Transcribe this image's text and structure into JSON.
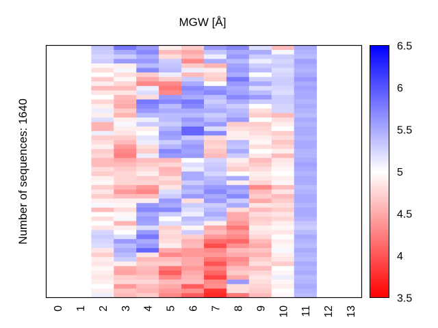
{
  "chart_data": {
    "type": "heatmap",
    "title": "MGW [Å]",
    "xlabel": "",
    "ylabel": "Number of sequences: 1640",
    "n_rows": 1640,
    "x_tick_labels": [
      "0",
      "1",
      "2",
      "3",
      "4",
      "5",
      "6",
      "7",
      "8",
      "9",
      "10",
      "11",
      "12",
      "13"
    ],
    "colorbar": {
      "min": 3.5,
      "max": 6.5,
      "center": 5,
      "ticks": [
        3.5,
        4,
        4.5,
        5,
        5.5,
        6,
        6.5
      ],
      "tick_labels": [
        "3.5",
        "4",
        "4.5",
        "5",
        "5.5",
        "6",
        "6.5"
      ],
      "colormap": "bwr_reversed",
      "low_color": "#ff0000",
      "mid_color": "#ffffff",
      "high_color": "#0000ff"
    },
    "columns_empty": [
      0,
      1,
      12,
      13
    ],
    "columns": {
      "2": [
        5.35,
        5.3,
        5.25,
        5.3,
        4.95,
        4.8,
        5.0,
        4.7,
        4.9,
        4.6,
        4.85,
        5.0,
        4.75,
        4.9,
        5.1,
        4.9,
        5.2,
        4.55,
        4.55,
        5.1,
        4.7,
        4.8,
        4.9,
        4.7,
        4.75,
        4.6,
        4.6,
        4.8,
        4.7,
        4.9,
        4.95,
        4.7,
        4.85,
        4.7,
        4.9,
        5.05,
        4.6,
        5.0,
        4.8,
        5.0,
        4.85,
        5.25,
        5.3,
        5.25,
        5.2,
        4.85,
        4.7,
        4.9,
        4.85,
        4.95,
        4.9,
        4.85,
        4.9,
        5.0,
        4.9,
        5.1
      ],
      "3": [
        5.8,
        5.5,
        5.3,
        5.6,
        4.9,
        5.05,
        4.8,
        4.95,
        4.75,
        4.6,
        4.85,
        4.6,
        4.55,
        4.5,
        4.7,
        4.55,
        4.9,
        5.05,
        4.9,
        4.85,
        4.7,
        4.6,
        4.4,
        4.3,
        4.25,
        4.5,
        4.6,
        4.7,
        4.75,
        4.75,
        4.75,
        4.55,
        4.4,
        4.6,
        4.9,
        4.95,
        4.8,
        4.95,
        5.05,
        4.55,
        4.9,
        5.0,
        5.2,
        5.6,
        5.4,
        5.5,
        5.4,
        5.3,
        4.9,
        4.5,
        4.45,
        4.7,
        4.75,
        4.4,
        4.65,
        4.6
      ],
      "4": [
        5.6,
        5.7,
        5.5,
        5.6,
        5.4,
        5.7,
        4.7,
        4.5,
        4.3,
        5.1,
        5.2,
        4.8,
        5.8,
        5.7,
        5.6,
        5.4,
        5.1,
        5.3,
        4.9,
        5.0,
        5.15,
        5.1,
        4.8,
        4.7,
        5.1,
        4.6,
        4.7,
        4.8,
        4.9,
        4.7,
        4.75,
        4.4,
        4.3,
        4.6,
        4.9,
        5.6,
        5.7,
        5.5,
        5.6,
        5.55,
        5.2,
        5.6,
        5.8,
        5.5,
        5.6,
        5.9,
        4.85,
        4.6,
        4.7,
        4.6,
        4.55,
        4.65,
        4.75,
        4.6,
        4.55,
        4.7
      ],
      "5": [
        4.9,
        4.6,
        4.8,
        5.3,
        5.35,
        5.4,
        5.1,
        4.7,
        4.3,
        4.2,
        4.3,
        5.6,
        5.7,
        5.4,
        5.5,
        5.4,
        5.4,
        5.3,
        5.45,
        5.6,
        5.55,
        5.3,
        5.45,
        5.7,
        5.6,
        4.6,
        4.75,
        4.55,
        4.6,
        4.8,
        4.7,
        4.85,
        5.2,
        5.3,
        5.6,
        5.5,
        5.7,
        5.3,
        5.0,
        5.2,
        4.7,
        4.8,
        4.75,
        4.8,
        4.9,
        4.5,
        4.3,
        4.6,
        4.7,
        4.2,
        4.05,
        4.3,
        4.6,
        4.5,
        4.4,
        4.3
      ],
      "6": [
        4.7,
        4.5,
        4.6,
        4.3,
        4.7,
        5.1,
        4.6,
        5.3,
        5.5,
        5.7,
        5.6,
        5.5,
        5.8,
        5.7,
        5.5,
        5.4,
        5.6,
        5.5,
        5.9,
        5.9,
        5.3,
        5.5,
        5.6,
        5.55,
        5.6,
        5.0,
        5.2,
        5.1,
        5.5,
        5.5,
        5.3,
        5.5,
        5.4,
        5.6,
        4.8,
        5.3,
        5.2,
        5.1,
        5.4,
        5.3,
        4.95,
        5.3,
        4.7,
        4.55,
        4.6,
        4.4,
        4.4,
        4.5,
        4.5,
        4.4,
        4.5,
        4.55,
        4.6,
        4.05,
        4.35,
        4.05
      ],
      "7": [
        5.6,
        5.35,
        5.1,
        5.5,
        4.55,
        4.9,
        4.75,
        4.7,
        5.0,
        5.6,
        5.7,
        5.4,
        5.3,
        5.4,
        5.5,
        5.3,
        5.4,
        5.6,
        5.2,
        5.7,
        4.8,
        4.7,
        4.75,
        4.65,
        4.6,
        5.25,
        5.3,
        5.35,
        5.25,
        5.4,
        5.45,
        5.6,
        5.7,
        5.5,
        5.6,
        5.3,
        5.4,
        5.5,
        5.35,
        4.9,
        4.5,
        4.6,
        4.4,
        4.15,
        3.95,
        4.3,
        4.4,
        4.2,
        4.0,
        4.25,
        4.1,
        3.9,
        4.3,
        4.35,
        3.8,
        3.75
      ],
      "8": [
        5.7,
        5.5,
        5.6,
        5.4,
        5.55,
        5.6,
        5.5,
        5.8,
        5.6,
        5.5,
        5.55,
        5.7,
        5.5,
        5.3,
        5.4,
        5.45,
        5.6,
        4.7,
        4.8,
        4.9,
        4.9,
        5.4,
        5.35,
        5.5,
        5.3,
        4.9,
        4.8,
        4.7,
        5.0,
        5.5,
        4.9,
        5.6,
        5.5,
        5.7,
        5.3,
        5.5,
        4.8,
        4.5,
        4.5,
        4.4,
        4.2,
        4.4,
        4.3,
        4.1,
        4.35,
        4.6,
        4.5,
        4.3,
        4.4,
        4.6,
        4.7,
        4.5,
        5.6,
        4.8,
        4.8,
        4.2
      ],
      "9": [
        5.2,
        5.5,
        5.3,
        5.1,
        5.3,
        5.4,
        5.0,
        5.3,
        5.5,
        5.2,
        5.4,
        5.6,
        5.3,
        5.0,
        4.8,
        4.7,
        5.0,
        4.7,
        4.75,
        4.8,
        4.9,
        4.95,
        4.8,
        5.0,
        4.85,
        4.6,
        4.7,
        4.8,
        4.9,
        4.85,
        4.75,
        4.3,
        4.6,
        4.7,
        4.5,
        4.85,
        4.6,
        4.8,
        4.7,
        4.75,
        4.9,
        4.85,
        4.75,
        4.6,
        4.5,
        4.65,
        4.55,
        4.7,
        4.8,
        4.6,
        4.75,
        4.85,
        4.8,
        4.75,
        4.7,
        4.6
      ],
      "10": [
        4.6,
        5.05,
        5.3,
        5.25,
        5.3,
        5.2,
        5.25,
        5.3,
        5.3,
        5.25,
        5.2,
        5.3,
        5.3,
        5.25,
        5.25,
        4.6,
        4.8,
        4.9,
        5.0,
        4.7,
        4.8,
        4.65,
        4.75,
        4.9,
        4.6,
        4.85,
        4.9,
        4.95,
        5.0,
        4.9,
        4.95,
        4.6,
        4.85,
        4.6,
        4.7,
        4.8,
        4.7,
        4.85,
        4.75,
        4.9,
        4.95,
        4.85,
        5.0,
        4.9,
        4.95,
        5.05,
        4.9,
        4.85,
        4.7,
        5.0,
        4.95,
        5.1,
        4.95,
        4.9,
        5.0,
        4.95
      ],
      "11": [
        5.5,
        5.45,
        5.4,
        5.55,
        5.5,
        5.45,
        5.5,
        5.6,
        5.5,
        5.55,
        5.5,
        5.5,
        5.45,
        5.5,
        5.45,
        5.4,
        5.5,
        5.45,
        5.5,
        5.5,
        5.45,
        5.5,
        5.5,
        5.45,
        5.45,
        5.5,
        5.55,
        5.5,
        5.45,
        5.5,
        5.5,
        5.4,
        5.45,
        5.5,
        5.5,
        5.45,
        5.5,
        5.5,
        5.45,
        5.35,
        5.3,
        5.4,
        5.5,
        5.45,
        5.4,
        5.5,
        5.45,
        5.4,
        5.5,
        5.45,
        5.5,
        5.4,
        5.45,
        5.5,
        5.45,
        5.4
      ]
    }
  }
}
